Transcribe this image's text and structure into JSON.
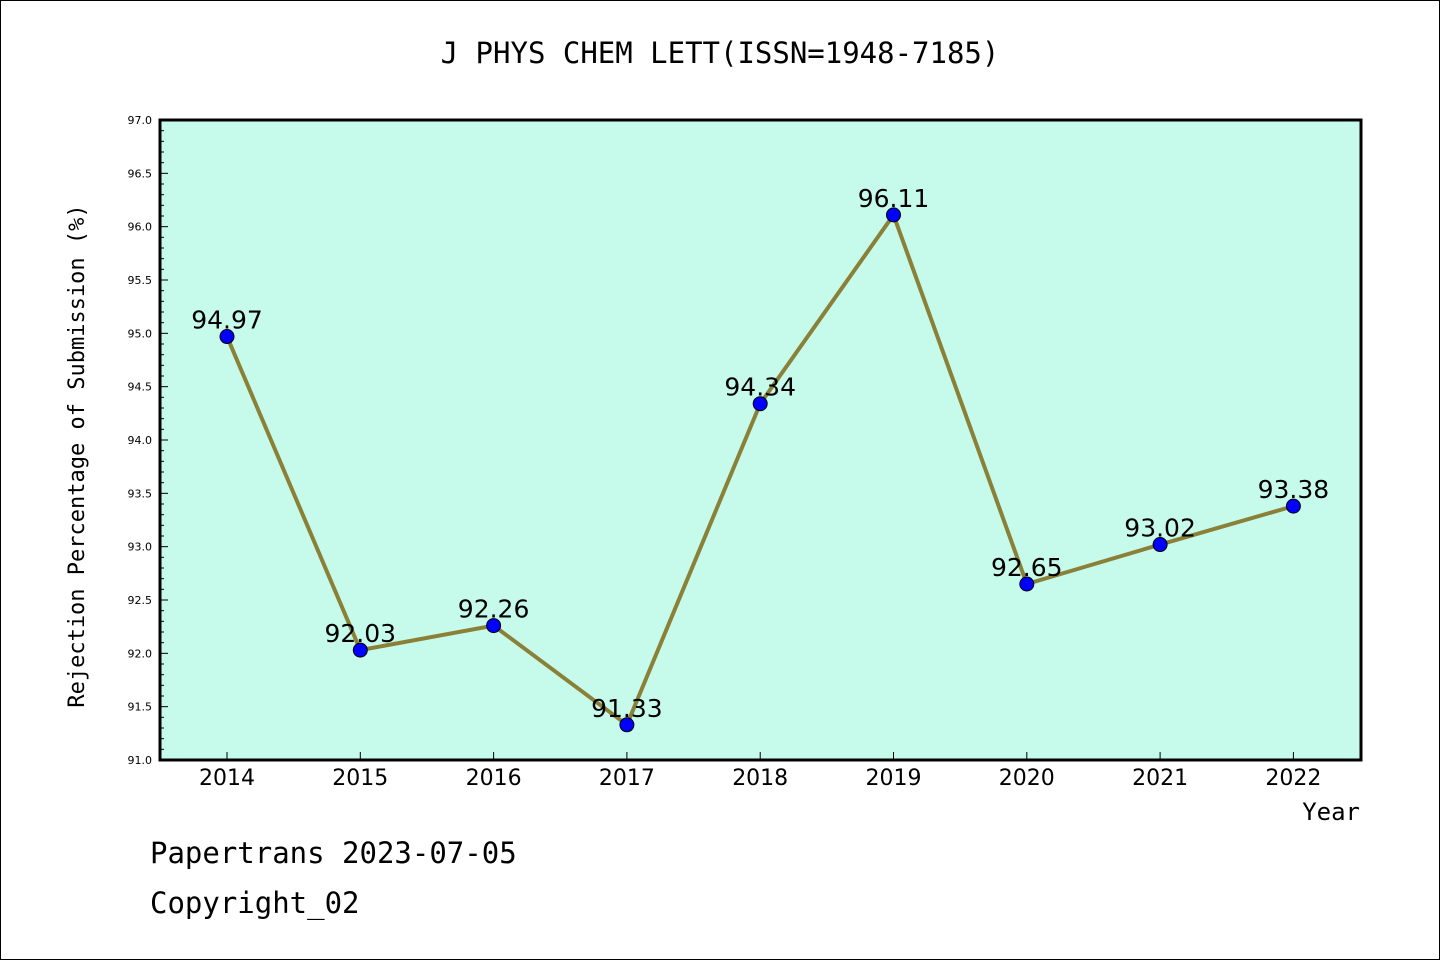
{
  "chart_data": {
    "type": "line",
    "title": "J PHYS CHEM LETT(ISSN=1948-7185)",
    "xlabel": "Year",
    "ylabel": "Rejection Percentage of Submission (%)",
    "categories": [
      "2014",
      "2015",
      "2016",
      "2017",
      "2018",
      "2019",
      "2020",
      "2021",
      "2022"
    ],
    "series": [
      {
        "values": [
          94.97,
          92.03,
          92.26,
          91.33,
          94.34,
          96.11,
          92.65,
          93.02,
          93.38
        ],
        "labels": [
          "94.97",
          "92.03",
          "92.26",
          "91.33",
          "94.34",
          "96.11",
          "92.65",
          "93.02",
          "93.38"
        ]
      }
    ],
    "ylim": [
      91.0,
      97.0
    ],
    "yticks": [
      "91.0",
      "91.5",
      "92.0",
      "92.5",
      "93.0",
      "93.5",
      "94.0",
      "94.5",
      "95.0",
      "95.5",
      "96.0",
      "96.5",
      "97.0"
    ],
    "grid": false,
    "colors": {
      "plot_background": "#c6fbec",
      "line": "#8b8038",
      "marker": "#0000ff"
    }
  },
  "footer": {
    "date_text": "Papertrans 2023-07-05",
    "copyright_text": "Copyright_02"
  }
}
